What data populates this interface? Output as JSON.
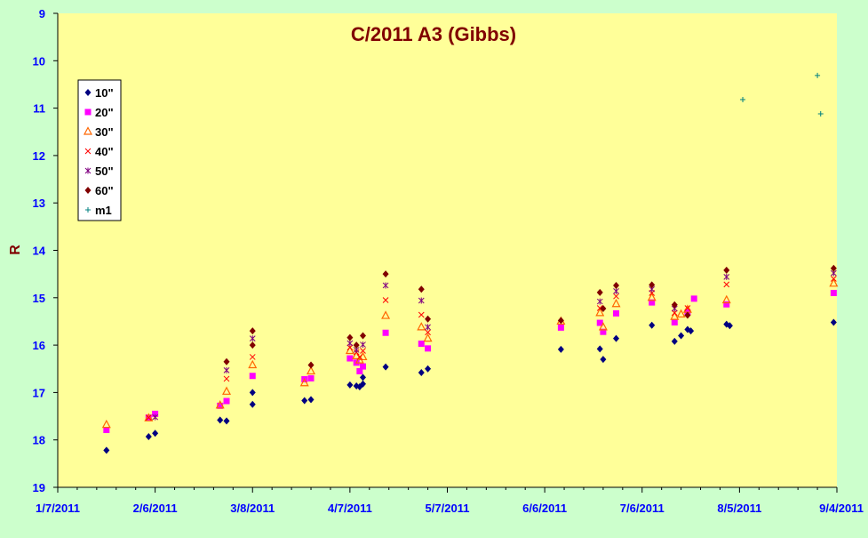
{
  "colors": {
    "background": "#ccffcc",
    "plot_area": "#ffff99",
    "title": "#800000",
    "axis_labels": "#0000ff",
    "ylabel": "#800000",
    "series": {
      "10\"": "#000080",
      "20\"": "#ff00ff",
      "30\"": "#ff6600",
      "40\"": "#ff0000",
      "50\"": "#800080",
      "60\"": "#800000",
      "m1": "#008080"
    }
  },
  "chart_data": {
    "type": "scatter",
    "title": "C/2011 A3 (Gibbs)",
    "xlabel": "",
    "ylabel": "R",
    "x_axis": {
      "type": "date",
      "min": "2011-01-07",
      "max": "2011-09-04",
      "ticks": [
        "1/7/2011",
        "2/6/2011",
        "3/8/2011",
        "4/7/2011",
        "5/7/2011",
        "6/6/2011",
        "7/6/2011",
        "8/5/2011",
        "9/4/2011"
      ]
    },
    "y_axis": {
      "min": 9,
      "max": 19,
      "reversed": true,
      "ticks": [
        "9",
        "10",
        "11",
        "12",
        "13",
        "14",
        "15",
        "16",
        "17",
        "18",
        "19"
      ]
    },
    "grid": false,
    "legend_position": "top-left",
    "series": [
      {
        "name": "10\"",
        "marker": "diamond",
        "points": [
          {
            "x": "2011-01-22",
            "y": 18.22
          },
          {
            "x": "2011-02-04",
            "y": 17.93
          },
          {
            "x": "2011-02-06",
            "y": 17.86
          },
          {
            "x": "2011-02-26",
            "y": 17.58
          },
          {
            "x": "2011-02-28",
            "y": 17.6
          },
          {
            "x": "2011-03-08",
            "y": 17.25
          },
          {
            "x": "2011-03-08",
            "y": 17.0
          },
          {
            "x": "2011-03-24",
            "y": 17.17
          },
          {
            "x": "2011-03-26",
            "y": 17.15
          },
          {
            "x": "2011-04-07",
            "y": 16.84
          },
          {
            "x": "2011-04-09",
            "y": 16.86
          },
          {
            "x": "2011-04-10",
            "y": 16.88
          },
          {
            "x": "2011-04-11",
            "y": 16.82
          },
          {
            "x": "2011-04-11",
            "y": 16.68
          },
          {
            "x": "2011-04-18",
            "y": 16.46
          },
          {
            "x": "2011-04-29",
            "y": 16.58
          },
          {
            "x": "2011-05-01",
            "y": 16.5
          },
          {
            "x": "2011-06-11",
            "y": 16.09
          },
          {
            "x": "2011-06-23",
            "y": 16.08
          },
          {
            "x": "2011-06-24",
            "y": 16.3
          },
          {
            "x": "2011-06-28",
            "y": 15.86
          },
          {
            "x": "2011-07-09",
            "y": 15.58
          },
          {
            "x": "2011-07-16",
            "y": 15.92
          },
          {
            "x": "2011-07-18",
            "y": 15.8
          },
          {
            "x": "2011-07-20",
            "y": 15.67
          },
          {
            "x": "2011-07-21",
            "y": 15.7
          },
          {
            "x": "2011-08-01",
            "y": 15.56
          },
          {
            "x": "2011-08-02",
            "y": 15.59
          },
          {
            "x": "2011-09-03",
            "y": 15.52
          }
        ]
      },
      {
        "name": "20\"",
        "marker": "square",
        "points": [
          {
            "x": "2011-01-22",
            "y": 17.79
          },
          {
            "x": "2011-02-04",
            "y": 17.53
          },
          {
            "x": "2011-02-06",
            "y": 17.45
          },
          {
            "x": "2011-02-26",
            "y": 17.28
          },
          {
            "x": "2011-02-28",
            "y": 17.18
          },
          {
            "x": "2011-03-08",
            "y": 16.65
          },
          {
            "x": "2011-03-24",
            "y": 16.72
          },
          {
            "x": "2011-03-26",
            "y": 16.7
          },
          {
            "x": "2011-04-07",
            "y": 16.28
          },
          {
            "x": "2011-04-09",
            "y": 16.37
          },
          {
            "x": "2011-04-10",
            "y": 16.55
          },
          {
            "x": "2011-04-11",
            "y": 16.45
          },
          {
            "x": "2011-04-18",
            "y": 15.74
          },
          {
            "x": "2011-04-29",
            "y": 15.97
          },
          {
            "x": "2011-05-01",
            "y": 16.07
          },
          {
            "x": "2011-06-11",
            "y": 15.63
          },
          {
            "x": "2011-06-23",
            "y": 15.53
          },
          {
            "x": "2011-06-24",
            "y": 15.72
          },
          {
            "x": "2011-06-28",
            "y": 15.33
          },
          {
            "x": "2011-07-09",
            "y": 15.1
          },
          {
            "x": "2011-07-16",
            "y": 15.52
          },
          {
            "x": "2011-07-20",
            "y": 15.31
          },
          {
            "x": "2011-07-22",
            "y": 15.02
          },
          {
            "x": "2011-08-01",
            "y": 15.14
          },
          {
            "x": "2011-09-03",
            "y": 14.9
          }
        ]
      },
      {
        "name": "30\"",
        "marker": "triangle",
        "points": [
          {
            "x": "2011-01-22",
            "y": 17.68
          },
          {
            "x": "2011-02-04",
            "y": 17.54
          },
          {
            "x": "2011-02-26",
            "y": 17.27
          },
          {
            "x": "2011-02-28",
            "y": 16.98
          },
          {
            "x": "2011-03-08",
            "y": 16.42
          },
          {
            "x": "2011-03-24",
            "y": 16.8
          },
          {
            "x": "2011-03-26",
            "y": 16.55
          },
          {
            "x": "2011-04-07",
            "y": 16.12
          },
          {
            "x": "2011-04-09",
            "y": 16.23
          },
          {
            "x": "2011-04-10",
            "y": 16.32
          },
          {
            "x": "2011-04-11",
            "y": 16.25
          },
          {
            "x": "2011-04-18",
            "y": 15.38
          },
          {
            "x": "2011-04-29",
            "y": 15.62
          },
          {
            "x": "2011-05-01",
            "y": 15.86
          },
          {
            "x": "2011-06-11",
            "y": 15.5
          },
          {
            "x": "2011-06-23",
            "y": 15.32
          },
          {
            "x": "2011-06-24",
            "y": 15.62
          },
          {
            "x": "2011-06-28",
            "y": 15.13
          },
          {
            "x": "2011-07-09",
            "y": 15.0
          },
          {
            "x": "2011-07-16",
            "y": 15.4
          },
          {
            "x": "2011-07-18",
            "y": 15.35
          },
          {
            "x": "2011-07-20",
            "y": 15.25
          },
          {
            "x": "2011-08-01",
            "y": 15.05
          },
          {
            "x": "2011-09-03",
            "y": 14.7
          }
        ]
      },
      {
        "name": "40\"",
        "marker": "x",
        "points": [
          {
            "x": "2011-02-04",
            "y": 17.53
          },
          {
            "x": "2011-02-28",
            "y": 16.71
          },
          {
            "x": "2011-03-08",
            "y": 16.25
          },
          {
            "x": "2011-04-07",
            "y": 16.05
          },
          {
            "x": "2011-04-09",
            "y": 16.15
          },
          {
            "x": "2011-04-10",
            "y": 16.25
          },
          {
            "x": "2011-04-11",
            "y": 16.12
          },
          {
            "x": "2011-04-18",
            "y": 15.05
          },
          {
            "x": "2011-04-29",
            "y": 15.36
          },
          {
            "x": "2011-05-01",
            "y": 15.73
          },
          {
            "x": "2011-06-23",
            "y": 15.22
          },
          {
            "x": "2011-06-28",
            "y": 14.97
          },
          {
            "x": "2011-07-09",
            "y": 14.9
          },
          {
            "x": "2011-07-16",
            "y": 15.32
          },
          {
            "x": "2011-07-20",
            "y": 15.22
          },
          {
            "x": "2011-08-01",
            "y": 14.72
          },
          {
            "x": "2011-09-03",
            "y": 14.6
          }
        ]
      },
      {
        "name": "50\"",
        "marker": "star",
        "points": [
          {
            "x": "2011-02-06",
            "y": 17.52
          },
          {
            "x": "2011-02-28",
            "y": 16.53
          },
          {
            "x": "2011-03-08",
            "y": 15.86
          },
          {
            "x": "2011-04-07",
            "y": 15.96
          },
          {
            "x": "2011-04-09",
            "y": 16.1
          },
          {
            "x": "2011-04-11",
            "y": 15.99
          },
          {
            "x": "2011-04-18",
            "y": 14.74
          },
          {
            "x": "2011-04-29",
            "y": 15.06
          },
          {
            "x": "2011-05-01",
            "y": 15.62
          },
          {
            "x": "2011-06-23",
            "y": 15.08
          },
          {
            "x": "2011-06-28",
            "y": 14.86
          },
          {
            "x": "2011-07-09",
            "y": 14.82
          },
          {
            "x": "2011-07-16",
            "y": 15.23
          },
          {
            "x": "2011-08-01",
            "y": 14.56
          },
          {
            "x": "2011-09-03",
            "y": 14.48
          }
        ]
      },
      {
        "name": "60\"",
        "marker": "diamond",
        "points": [
          {
            "x": "2011-02-28",
            "y": 16.35
          },
          {
            "x": "2011-03-08",
            "y": 15.7
          },
          {
            "x": "2011-03-08",
            "y": 16.0
          },
          {
            "x": "2011-03-26",
            "y": 16.42
          },
          {
            "x": "2011-04-07",
            "y": 15.84
          },
          {
            "x": "2011-04-09",
            "y": 16.0
          },
          {
            "x": "2011-04-11",
            "y": 15.8
          },
          {
            "x": "2011-04-18",
            "y": 14.5
          },
          {
            "x": "2011-04-29",
            "y": 14.82
          },
          {
            "x": "2011-05-01",
            "y": 15.45
          },
          {
            "x": "2011-06-11",
            "y": 15.48
          },
          {
            "x": "2011-06-23",
            "y": 14.89
          },
          {
            "x": "2011-06-24",
            "y": 15.23
          },
          {
            "x": "2011-06-28",
            "y": 14.74
          },
          {
            "x": "2011-07-09",
            "y": 14.73
          },
          {
            "x": "2011-07-16",
            "y": 15.15
          },
          {
            "x": "2011-07-20",
            "y": 15.37
          },
          {
            "x": "2011-08-01",
            "y": 14.42
          },
          {
            "x": "2011-09-03",
            "y": 14.38
          }
        ]
      },
      {
        "name": "m1",
        "marker": "plus",
        "points": [
          {
            "x": "2011-08-06",
            "y": 10.82
          },
          {
            "x": "2011-08-29",
            "y": 10.31
          },
          {
            "x": "2011-08-30",
            "y": 11.12
          }
        ]
      }
    ]
  }
}
